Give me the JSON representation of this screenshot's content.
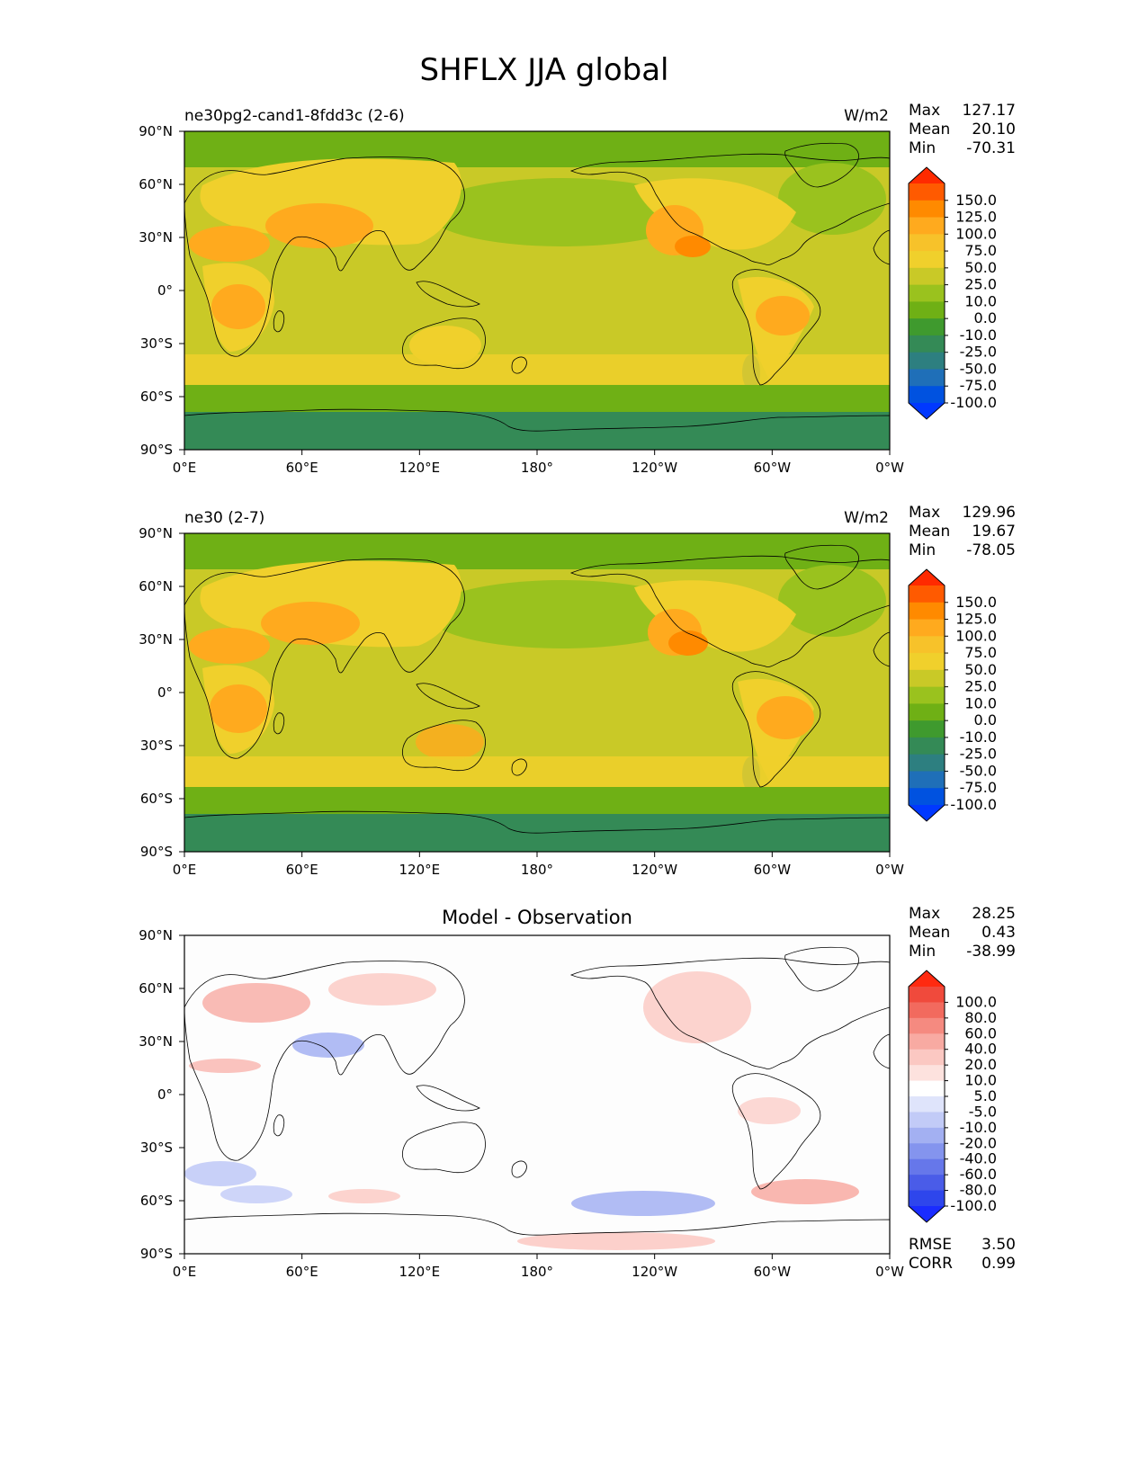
{
  "title": "SHFLX JJA global",
  "chart_data": [
    {
      "type": "heatmap",
      "title": "ne30pg2-cand1-8fdd3c (2-6)",
      "units": "W/m2",
      "xlim": [
        0,
        360
      ],
      "ylim": [
        -90,
        90
      ],
      "xticks": [
        "0°E",
        "60°E",
        "120°E",
        "180°",
        "120°W",
        "60°W",
        "0°W"
      ],
      "yticks": [
        "90°N",
        "60°N",
        "30°N",
        "0°",
        "30°S",
        "60°S",
        "90°S"
      ],
      "stats": [
        {
          "label": "Max",
          "value": "127.17"
        },
        {
          "label": "Mean",
          "value": "20.10"
        },
        {
          "label": "Min",
          "value": "-70.31"
        }
      ],
      "colorbar": {
        "labels": [
          "150.0",
          "125.0",
          "100.0",
          "75.0",
          "50.0",
          "25.0",
          "10.0",
          "0.0",
          "-10.0",
          "-25.0",
          "-50.0",
          "-75.0",
          "-100.0"
        ],
        "colors": [
          "#ff2a00",
          "#ff5a00",
          "#ff8a00",
          "#ffaa1e",
          "#f7c22a",
          "#f0d02c",
          "#c9c927",
          "#9ac21e",
          "#6fb015",
          "#3f9a2e",
          "#348a56",
          "#2d7f80",
          "#1f6fb8",
          "#0052e0",
          "#0038ff"
        ]
      }
    },
    {
      "type": "heatmap",
      "title": "ne30 (2-7)",
      "units": "W/m2",
      "xlim": [
        0,
        360
      ],
      "ylim": [
        -90,
        90
      ],
      "xticks": [
        "0°E",
        "60°E",
        "120°E",
        "180°",
        "120°W",
        "60°W",
        "0°W"
      ],
      "yticks": [
        "90°N",
        "60°N",
        "30°N",
        "0°",
        "30°S",
        "60°S",
        "90°S"
      ],
      "stats": [
        {
          "label": "Max",
          "value": "129.96"
        },
        {
          "label": "Mean",
          "value": "19.67"
        },
        {
          "label": "Min",
          "value": "-78.05"
        }
      ],
      "colorbar": {
        "labels": [
          "150.0",
          "125.0",
          "100.0",
          "75.0",
          "50.0",
          "25.0",
          "10.0",
          "0.0",
          "-10.0",
          "-25.0",
          "-50.0",
          "-75.0",
          "-100.0"
        ],
        "colors": [
          "#ff2a00",
          "#ff5a00",
          "#ff8a00",
          "#ffaa1e",
          "#f7c22a",
          "#f0d02c",
          "#c9c927",
          "#9ac21e",
          "#6fb015",
          "#3f9a2e",
          "#348a56",
          "#2d7f80",
          "#1f6fb8",
          "#0052e0",
          "#0038ff"
        ]
      }
    },
    {
      "type": "heatmap",
      "title": "Model - Observation",
      "units": "",
      "xlim": [
        0,
        360
      ],
      "ylim": [
        -90,
        90
      ],
      "xticks": [
        "0°E",
        "60°E",
        "120°E",
        "180°",
        "120°W",
        "60°W",
        "0°W"
      ],
      "yticks": [
        "90°N",
        "60°N",
        "30°N",
        "0°",
        "30°S",
        "60°S",
        "90°S"
      ],
      "stats": [
        {
          "label": "Max",
          "value": "28.25"
        },
        {
          "label": "Mean",
          "value": "0.43"
        },
        {
          "label": "Min",
          "value": "-38.99"
        }
      ],
      "metrics": [
        {
          "label": "RMSE",
          "value": "3.50"
        },
        {
          "label": "CORR",
          "value": "0.99"
        }
      ],
      "colorbar": {
        "labels": [
          "100.0",
          "80.0",
          "60.0",
          "40.0",
          "20.0",
          "10.0",
          "5.0",
          "-5.0",
          "-10.0",
          "-20.0",
          "-40.0",
          "-60.0",
          "-80.0",
          "-100.0"
        ],
        "colors": [
          "#ff2a10",
          "#f04a3c",
          "#f26a5e",
          "#f58a80",
          "#f8aaa2",
          "#fbc8c2",
          "#fde2de",
          "#ffffff",
          "#dfe4fb",
          "#c2cbf7",
          "#a3b0f2",
          "#8494ee",
          "#6677ea",
          "#4a5ce8",
          "#2e46ec",
          "#1a2cff"
        ]
      }
    }
  ]
}
